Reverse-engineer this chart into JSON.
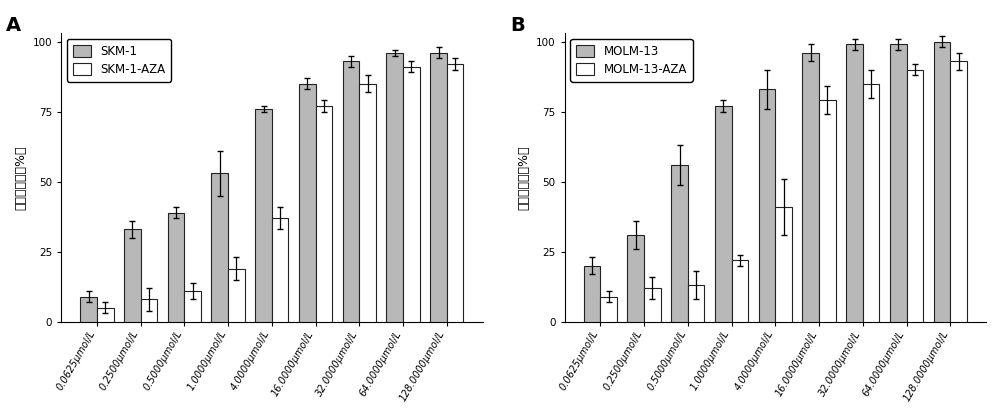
{
  "chart_A": {
    "title": "A",
    "categories": [
      "0.0625μmol/L",
      "0.2500μmol/L",
      "0.5000μmol/L",
      "1.0000μmol/L",
      "4.0000μmol/L",
      "16.0000μmol/L",
      "32.0000μmol/L",
      "64.0000μmol/L",
      "128.0000μmol/L"
    ],
    "series1_label": "SKM-1",
    "series2_label": "SKM-1-AZA",
    "series1_values": [
      9,
      33,
      39,
      53,
      76,
      85,
      93,
      96,
      96
    ],
    "series2_values": [
      5,
      8,
      11,
      19,
      37,
      77,
      85,
      91,
      92
    ],
    "series1_errors": [
      2,
      3,
      2,
      8,
      1,
      2,
      2,
      1,
      2
    ],
    "series2_errors": [
      2,
      4,
      3,
      4,
      4,
      2,
      3,
      2,
      2
    ],
    "series1_color": "#b8b8b8",
    "series2_color": "#ffffff",
    "ylabel_chars": [
      "增",
      "殖",
      "抑",
      "制",
      "率",
      "（",
      "%",
      "）"
    ],
    "ylim": [
      0,
      103
    ]
  },
  "chart_B": {
    "title": "B",
    "categories": [
      "0.0625μmol/L",
      "0.2500μmol/L",
      "0.5000μmol/L",
      "1.0000μmol/L",
      "4.0000μmol/L",
      "16.0000μmol/L",
      "32.0000μmol/L",
      "64.0000μmol/L",
      "128.0000μmol/L"
    ],
    "series1_label": "MOLM-13",
    "series2_label": "MOLM-13-AZA",
    "series1_values": [
      20,
      31,
      56,
      77,
      83,
      96,
      99,
      99,
      100
    ],
    "series2_values": [
      9,
      12,
      13,
      22,
      41,
      79,
      85,
      90,
      93
    ],
    "series1_errors": [
      3,
      5,
      7,
      2,
      7,
      3,
      2,
      2,
      2
    ],
    "series2_errors": [
      2,
      4,
      5,
      2,
      10,
      5,
      5,
      2,
      3
    ],
    "series1_color": "#b8b8b8",
    "series2_color": "#ffffff",
    "ylabel_chars": [
      "增",
      "殖",
      "抑",
      "制",
      "率",
      "（",
      "%",
      "）"
    ],
    "ylim": [
      0,
      103
    ]
  },
  "bar_width": 0.38,
  "edgecolor": "#222222",
  "fig_bg": "#ffffff",
  "tick_fontsize": 7.5,
  "label_fontsize": 9,
  "legend_fontsize": 8.5,
  "title_fontsize": 14
}
